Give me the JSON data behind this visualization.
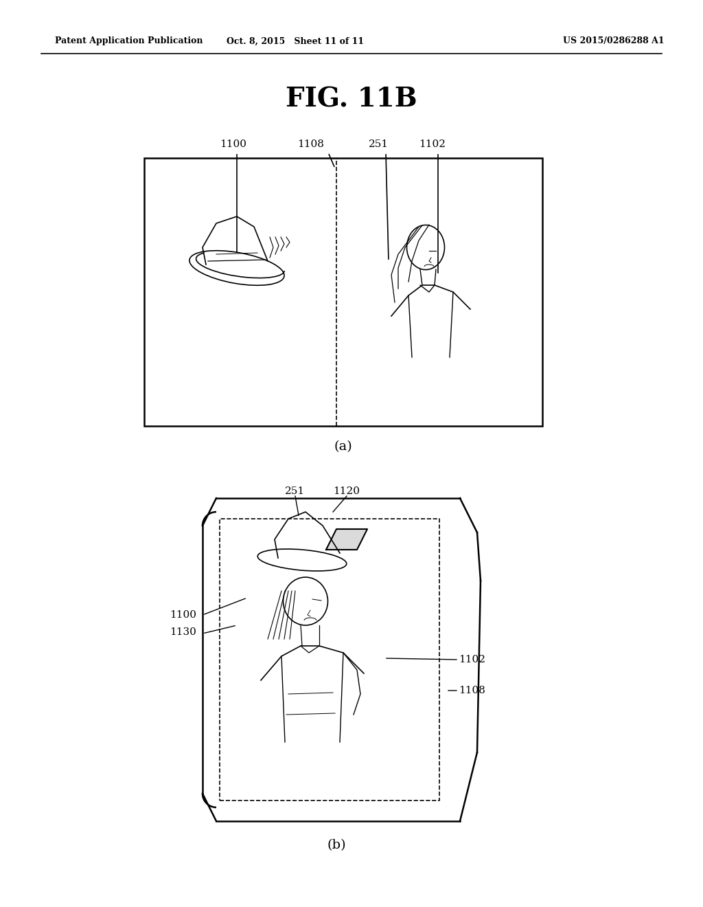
{
  "bg_color": "#ffffff",
  "header_left": "Patent Application Publication",
  "header_mid": "Oct. 8, 2015   Sheet 11 of 11",
  "header_right": "US 2015/0286288 A1",
  "fig_title": "FIG. 11B",
  "caption_a": "(a)",
  "caption_b": "(b)",
  "label_color": "#000000",
  "line_color": "#000000"
}
